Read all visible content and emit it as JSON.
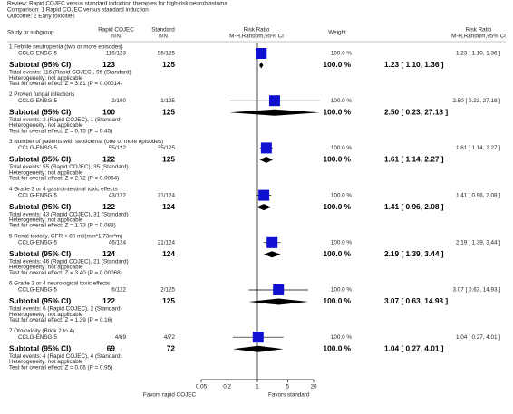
{
  "header": {
    "review": "Review:  Rapid COJEC versus standard induction therapies for high-risk neuroblastoma",
    "comparison": "Comparison:  1 Rapid COJEC versus standard induction",
    "outcome": "Outcome:  2 Early toxicities"
  },
  "chart_data": {
    "type": "forest",
    "columns": {
      "study": "Study or subgroup",
      "exp": "Rapid COJEC",
      "exp_sub": "n/N",
      "ctrl": "Standard",
      "ctrl_sub": "n/N",
      "plot": "Risk Ratio",
      "plot_sub": "M-H,Random,95% CI",
      "weight": "Weight",
      "effect": "Risk Ratio",
      "effect_sub": "M-H,Random,95% CI"
    },
    "xlim": [
      0.05,
      20
    ],
    "xticks": [
      0.05,
      0.2,
      1,
      5,
      20
    ],
    "log_scale": true,
    "square_color": "#1010d0",
    "diamond_color": "#000000",
    "favors_left": "Favors rapid COJEC",
    "favors_right": "Favors standard",
    "subgroups": [
      {
        "title": "1 Febrile neutropenia (two or more episodes)",
        "study": {
          "name": "CCLG-ENSG-5",
          "exp": "116/123",
          "ctrl": "96/125",
          "weight": 100,
          "weight_label": "100.0 %",
          "rr": 1.23,
          "ci": [
            1.1,
            1.36
          ],
          "label": "1.23 [ 1.10, 1.36 ]"
        },
        "subtotal": {
          "name": "Subtotal (95% CI)",
          "exp": 123,
          "ctrl": 125,
          "weight": 100,
          "weight_label": "100.0 %",
          "rr": 1.23,
          "ci": [
            1.1,
            1.36
          ],
          "label": "1.23 [ 1.10, 1.36 ]"
        },
        "notes": [
          "Total events: 116 (Rapid COJEC), 96 (Standard)",
          "Heterogeneity: not applicable",
          "Test for overall effect: Z = 3.81 (P = 0.00014)"
        ]
      },
      {
        "title": "2 Proven fungal infections",
        "study": {
          "name": "CCLG-ENSG-5",
          "exp": "2/100",
          "ctrl": "1/125",
          "weight": 100,
          "weight_label": "100.0 %",
          "rr": 2.5,
          "ci": [
            0.23,
            27.18
          ],
          "label": "2.50 [ 0.23, 27.18 ]"
        },
        "subtotal": {
          "name": "Subtotal (95% CI)",
          "exp": 100,
          "ctrl": 125,
          "weight": 100,
          "weight_label": "100.0 %",
          "rr": 2.5,
          "ci": [
            0.23,
            27.18
          ],
          "label": "2.50 [ 0.23, 27.18 ]"
        },
        "notes": [
          "Total events: 2 (Rapid COJEC), 1 (Standard)",
          "Heterogeneity: not applicable",
          "Test for overall effect: Z = 0.75 (P = 0.45)"
        ]
      },
      {
        "title": "3 Number of patients with septicemia (one or more episodes)",
        "study": {
          "name": "CCLG-ENSG-5",
          "exp": "55/122",
          "ctrl": "35/125",
          "weight": 100,
          "weight_label": "100.0 %",
          "rr": 1.61,
          "ci": [
            1.14,
            2.27
          ],
          "label": "1.61 [ 1.14, 2.27 ]"
        },
        "subtotal": {
          "name": "Subtotal (95% CI)",
          "exp": 122,
          "ctrl": 125,
          "weight": 100,
          "weight_label": "100.0 %",
          "rr": 1.61,
          "ci": [
            1.14,
            2.27
          ],
          "label": "1.61 [ 1.14, 2.27 ]"
        },
        "notes": [
          "Total events: 55 (Rapid COJEC), 35 (Standard)",
          "Heterogeneity: not applicable",
          "Test for overall effect: Z = 2.72 (P = 0.0064)"
        ]
      },
      {
        "title": "4 Grade 3 or 4 gastrointestinal toxic effects",
        "study": {
          "name": "CCLG-ENSG-5",
          "exp": "43/122",
          "ctrl": "31/124",
          "weight": 100,
          "weight_label": "100.0 %",
          "rr": 1.41,
          "ci": [
            0.96,
            2.08
          ],
          "label": "1.41 [ 0.96, 2.08 ]"
        },
        "subtotal": {
          "name": "Subtotal (95% CI)",
          "exp": 122,
          "ctrl": 124,
          "weight": 100,
          "weight_label": "100.0 %",
          "rr": 1.41,
          "ci": [
            0.96,
            2.08
          ],
          "label": "1.41 [ 0.96, 2.08 ]"
        },
        "notes": [
          "Total events: 43 (Rapid COJEC), 31 (Standard)",
          "Heterogeneity: not applicable",
          "Test for overall effect: Z = 1.73 (P = 0.083)"
        ]
      },
      {
        "title": "5 Renal toxicity, GFR < 80 ml/(min*1.73m*m)",
        "study": {
          "name": "CCLG-ENSG-5",
          "exp": "46/124",
          "ctrl": "21/124",
          "weight": 100,
          "weight_label": "100.0 %",
          "rr": 2.19,
          "ci": [
            1.39,
            3.44
          ],
          "label": "2.19 [ 1.39, 3.44 ]"
        },
        "subtotal": {
          "name": "Subtotal (95% CI)",
          "exp": 124,
          "ctrl": 124,
          "weight": 100,
          "weight_label": "100.0 %",
          "rr": 2.19,
          "ci": [
            1.39,
            3.44
          ],
          "label": "2.19 [ 1.39, 3.44 ]"
        },
        "notes": [
          "Total events: 46 (Rapid COJEC), 21 (Standard)",
          "Heterogeneity: not applicable",
          "Test for overall effect: Z = 3.40 (P = 0.00068)"
        ]
      },
      {
        "title": "6 Grade 3 or 4 neurological toxic effects",
        "study": {
          "name": "CCLG-ENSG-5",
          "exp": "6/122",
          "ctrl": "2/125",
          "weight": 100,
          "weight_label": "100.0 %",
          "rr": 3.07,
          "ci": [
            0.63,
            14.93
          ],
          "label": "3.07 [ 0.63, 14.93 ]"
        },
        "subtotal": {
          "name": "Subtotal (95% CI)",
          "exp": 122,
          "ctrl": 125,
          "weight": 100,
          "weight_label": "100.0 %",
          "rr": 3.07,
          "ci": [
            0.63,
            14.93
          ],
          "label": "3.07 [ 0.63, 14.93 ]"
        },
        "notes": [
          "Total events: 6 (Rapid COJEC), 2 (Standard)",
          "Heterogeneity: not applicable",
          "Test for overall effect: Z = 1.39 (P = 0.16)"
        ]
      },
      {
        "title": "7 Ototoxicity (Brick 2 to 4)",
        "study": {
          "name": "CCLG-ENSG-5",
          "exp": "4/69",
          "ctrl": "4/72",
          "weight": 100,
          "weight_label": "100.0 %",
          "rr": 1.04,
          "ci": [
            0.27,
            4.01
          ],
          "label": "1.04 [ 0.27, 4.01 ]"
        },
        "subtotal": {
          "name": "Subtotal (95% CI)",
          "exp": 69,
          "ctrl": 72,
          "weight": 100,
          "weight_label": "100.0 %",
          "rr": 1.04,
          "ci": [
            0.27,
            4.01
          ],
          "label": "1.04 [ 0.27, 4.01 ]"
        },
        "notes": [
          "Total events: 4 (Rapid COJEC), 4 (Standard)",
          "Heterogeneity: not applicable",
          "Test for overall effect: Z = 0.06 (P = 0.95)"
        ]
      }
    ]
  }
}
